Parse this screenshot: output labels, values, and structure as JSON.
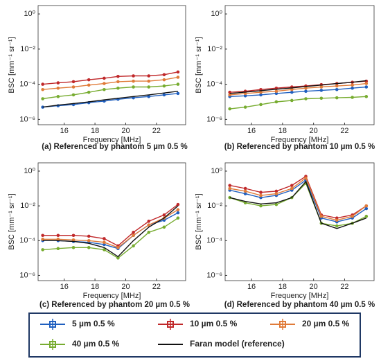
{
  "chart_data": [
    {
      "type": "line",
      "caption": "(a) Referenced by phantom 5 µm 0.5 %",
      "xlabel": "Frequency [MHz]",
      "ylabel": "BSC [mm⁻¹ sr⁻¹]",
      "yscale": "log",
      "xlim": [
        14.3,
        23.9
      ],
      "ylim": [
        5e-07,
        3
      ],
      "xticks": [
        16,
        18,
        20,
        22
      ],
      "yticks": [
        {
          "value": 1,
          "label": "10⁰"
        },
        {
          "value": 0.01,
          "label": "10⁻²"
        },
        {
          "value": 0.0001,
          "label": "10⁻⁴"
        },
        {
          "value": 1e-06,
          "label": "10⁻⁶"
        }
      ],
      "x": [
        14.6,
        15.6,
        16.6,
        17.6,
        18.6,
        19.5,
        20.5,
        21.5,
        22.5,
        23.4
      ],
      "series": [
        {
          "name": "5 µm 0.5 %",
          "color": "#1f5fbf",
          "markers": true,
          "values": [
            5e-06,
            6e-06,
            7e-06,
            9e-06,
            1.1e-05,
            1.4e-05,
            1.7e-05,
            2e-05,
            2.5e-05,
            3e-05
          ]
        },
        {
          "name": "10 µm 0.5 %",
          "color": "#c0282a",
          "markers": true,
          "values": [
            0.0001,
            0.00012,
            0.00014,
            0.00018,
            0.00022,
            0.00028,
            0.0003,
            0.0003,
            0.00035,
            0.0005
          ]
        },
        {
          "name": "20 µm 0.5 %",
          "color": "#e07b39",
          "markers": true,
          "values": [
            5e-05,
            6e-05,
            7e-05,
            9e-05,
            0.00011,
            0.00014,
            0.00015,
            0.00015,
            0.00018,
            0.00025
          ]
        },
        {
          "name": "40 µm 0.5 %",
          "color": "#77ac30",
          "markers": true,
          "values": [
            1.5e-05,
            2e-05,
            2.5e-05,
            3.5e-05,
            5e-05,
            6e-05,
            7e-05,
            7e-05,
            8e-05,
            0.0001
          ]
        },
        {
          "name": "Faran model (reference)",
          "color": "#111111",
          "markers": false,
          "values": [
            5e-06,
            6.5e-06,
            8e-06,
            1e-05,
            1.3e-05,
            1.6e-05,
            2e-05,
            2.5e-05,
            3.2e-05,
            4e-05
          ]
        }
      ]
    },
    {
      "type": "line",
      "caption": "(b) Referenced by phantom 10 µm 0.5 %",
      "xlabel": "Frequency [MHz]",
      "ylabel": "BSC [mm⁻¹ sr⁻¹]",
      "yscale": "log",
      "xlim": [
        14.3,
        23.9
      ],
      "ylim": [
        5e-07,
        3
      ],
      "xticks": [
        16,
        18,
        20,
        22
      ],
      "yticks": [
        {
          "value": 1,
          "label": "10⁰"
        },
        {
          "value": 0.01,
          "label": "10⁻²"
        },
        {
          "value": 0.0001,
          "label": "10⁻⁴"
        },
        {
          "value": 1e-06,
          "label": "10⁻⁶"
        }
      ],
      "x": [
        14.6,
        15.6,
        16.6,
        17.6,
        18.6,
        19.5,
        20.5,
        21.5,
        22.5,
        23.4
      ],
      "series": [
        {
          "name": "5 µm 0.5 %",
          "color": "#1f5fbf",
          "markers": true,
          "values": [
            2e-05,
            2.2e-05,
            2.5e-05,
            3e-05,
            3.5e-05,
            4e-05,
            4.5e-05,
            5e-05,
            6e-05,
            7e-05
          ]
        },
        {
          "name": "10 µm 0.5 %",
          "color": "#c0282a",
          "markers": true,
          "values": [
            3.5e-05,
            4e-05,
            5e-05,
            6e-05,
            7e-05,
            8e-05,
            9.5e-05,
            0.00011,
            0.00013,
            0.00015
          ]
        },
        {
          "name": "20 µm 0.5 %",
          "color": "#e07b39",
          "markers": true,
          "values": [
            2.5e-05,
            3e-05,
            3.5e-05,
            4e-05,
            5e-05,
            6e-05,
            7e-05,
            8e-05,
            9e-05,
            0.00011
          ]
        },
        {
          "name": "40 µm 0.5 %",
          "color": "#77ac30",
          "markers": true,
          "values": [
            4e-06,
            5e-06,
            7e-06,
            1e-05,
            1.2e-05,
            1.5e-05,
            1.6e-05,
            1.7e-05,
            1.8e-05,
            2e-05
          ]
        },
        {
          "name": "Faran model (reference)",
          "color": "#111111",
          "markers": false,
          "values": [
            3e-05,
            3.6e-05,
            4.3e-05,
            5.2e-05,
            6.2e-05,
            7.5e-05,
            9e-05,
            0.00011,
            0.00013,
            0.00016
          ]
        }
      ]
    },
    {
      "type": "line",
      "caption": "(c) Referenced by phantom 20 µm 0.5 %",
      "xlabel": "Frequency [MHz]",
      "ylabel": "BSC [mm⁻¹ sr⁻¹]",
      "yscale": "log",
      "xlim": [
        14.3,
        23.9
      ],
      "ylim": [
        5e-07,
        3
      ],
      "xticks": [
        16,
        18,
        20,
        22
      ],
      "yticks": [
        {
          "value": 1,
          "label": "10⁰"
        },
        {
          "value": 0.01,
          "label": "10⁻²"
        },
        {
          "value": 0.0001,
          "label": "10⁻⁴"
        },
        {
          "value": 1e-06,
          "label": "10⁻⁶"
        }
      ],
      "x": [
        14.6,
        15.6,
        16.6,
        17.6,
        18.6,
        19.5,
        20.5,
        21.5,
        22.5,
        23.4
      ],
      "series": [
        {
          "name": "5 µm 0.5 %",
          "color": "#1f5fbf",
          "markers": true,
          "values": [
            0.0001,
            0.0001,
            9e-05,
            8e-05,
            6e-05,
            3.5e-05,
            0.0002,
            0.0008,
            0.0015,
            0.004
          ]
        },
        {
          "name": "10 µm 0.5 %",
          "color": "#c0282a",
          "markers": true,
          "values": [
            0.0002,
            0.0002,
            0.0002,
            0.00018,
            0.00013,
            5e-05,
            0.0003,
            0.0013,
            0.003,
            0.012
          ]
        },
        {
          "name": "20 µm 0.5 %",
          "color": "#e07b39",
          "markers": true,
          "values": [
            0.00012,
            0.00012,
            0.00011,
            0.0001,
            8e-05,
            4e-05,
            0.0002,
            0.0008,
            0.002,
            0.006
          ]
        },
        {
          "name": "40 µm 0.5 %",
          "color": "#77ac30",
          "markers": true,
          "values": [
            3e-05,
            3.5e-05,
            4e-05,
            4e-05,
            3e-05,
            1e-05,
            5e-05,
            0.0003,
            0.0006,
            0.002
          ]
        },
        {
          "name": "Faran model (reference)",
          "color": "#111111",
          "markers": false,
          "values": [
            0.0001,
            0.0001,
            9e-05,
            7e-05,
            4e-05,
            1.2e-05,
            0.0001,
            0.0006,
            0.002,
            0.01
          ]
        }
      ]
    },
    {
      "type": "line",
      "caption": "(d) Referenced by phantom 40 µm 0.5 %",
      "xlabel": "Frequency [MHz]",
      "ylabel": "BSC [mm⁻¹ sr⁻¹]",
      "yscale": "log",
      "xlim": [
        14.3,
        23.9
      ],
      "ylim": [
        5e-07,
        3
      ],
      "xticks": [
        16,
        18,
        20,
        22
      ],
      "yticks": [
        {
          "value": 1,
          "label": "10⁰"
        },
        {
          "value": 0.01,
          "label": "10⁻²"
        },
        {
          "value": 0.0001,
          "label": "10⁻⁴"
        },
        {
          "value": 1e-06,
          "label": "10⁻⁶"
        }
      ],
      "x": [
        14.6,
        15.6,
        16.6,
        17.6,
        18.6,
        19.5,
        20.5,
        21.5,
        22.5,
        23.4
      ],
      "series": [
        {
          "name": "5 µm 0.5 %",
          "color": "#1f5fbf",
          "markers": true,
          "values": [
            0.08,
            0.05,
            0.03,
            0.04,
            0.08,
            0.3,
            0.002,
            0.0012,
            0.002,
            0.007
          ]
        },
        {
          "name": "10 µm 0.5 %",
          "color": "#c0282a",
          "markers": true,
          "values": [
            0.15,
            0.1,
            0.06,
            0.07,
            0.15,
            0.5,
            0.003,
            0.002,
            0.003,
            0.01
          ]
        },
        {
          "name": "20 µm 0.5 %",
          "color": "#e07b39",
          "markers": true,
          "values": [
            0.1,
            0.07,
            0.04,
            0.05,
            0.1,
            0.4,
            0.0025,
            0.0015,
            0.0025,
            0.01
          ]
        },
        {
          "name": "40 µm 0.5 %",
          "color": "#77ac30",
          "markers": true,
          "values": [
            0.03,
            0.015,
            0.01,
            0.012,
            0.03,
            0.2,
            0.001,
            0.0007,
            0.001,
            0.0025
          ]
        },
        {
          "name": "Faran model (reference)",
          "color": "#111111",
          "markers": false,
          "values": [
            0.03,
            0.018,
            0.013,
            0.015,
            0.03,
            0.25,
            0.001,
            0.0005,
            0.001,
            0.002
          ]
        }
      ]
    }
  ]
}
